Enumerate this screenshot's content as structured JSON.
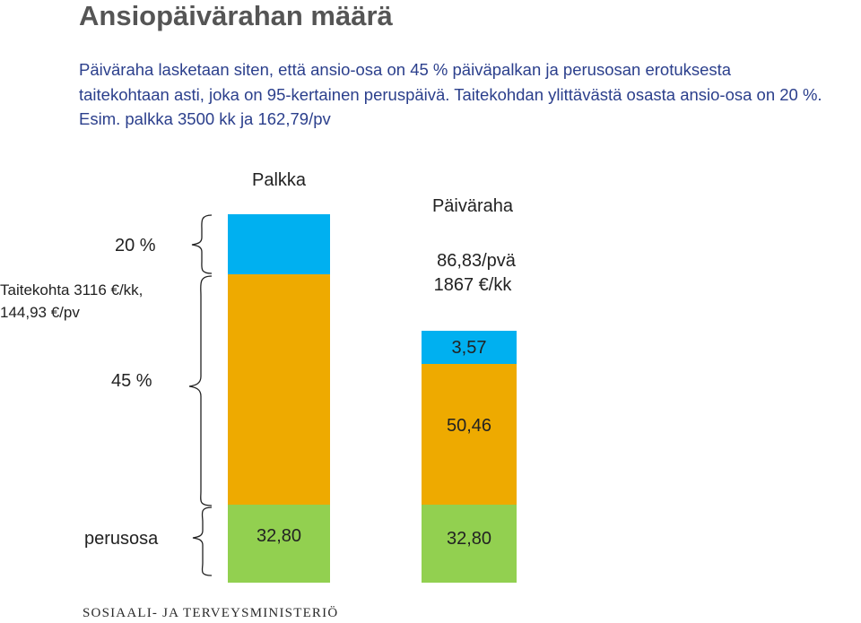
{
  "slide": {
    "title": "Ansiopäivärahan määrä",
    "intro": "Päiväraha lasketaan siten, että ansio-osa on 45 % päiväpalkan ja perusosan erotuksesta taitekohtaan asti, joka on 95-kertainen peruspäivä. Taitekohdan ylittävästä osasta ansio-osa on 20 %. Esim. palkka 3500 kk ja 162,79/pv",
    "footer": "SOSIAALI- JA TERVEYSMINISTERIÖ"
  },
  "labels": {
    "palkka": "Palkka",
    "paivaraha": "Päiväraha",
    "pct20": "20 %",
    "pct45": "45 %",
    "taitekohta_line1": "Taitekohta 3116 €/kk,",
    "taitekohta_line2": "144,93 €/pv",
    "perusosa": "perusosa",
    "paivaraha_daily": "86,83/pvä",
    "paivaraha_monthly": "1867 €/kk"
  },
  "bars": {
    "palkka": {
      "segments": [
        {
          "name": "perusosa",
          "label": "32,80",
          "color": "#92d050"
        },
        {
          "name": "ansio-osa-45",
          "label": "",
          "color": "#eeaa00"
        },
        {
          "name": "ansio-osa-20",
          "label": "",
          "color": "#00b0f0"
        }
      ]
    },
    "paivaraha": {
      "segments": [
        {
          "name": "perusosa",
          "label": "32,80",
          "color": "#92d050"
        },
        {
          "name": "ansio-osa-45",
          "label": "50,46",
          "color": "#eeaa00"
        },
        {
          "name": "ansio-osa-20",
          "label": "3,57",
          "color": "#00b0f0"
        }
      ]
    }
  }
}
